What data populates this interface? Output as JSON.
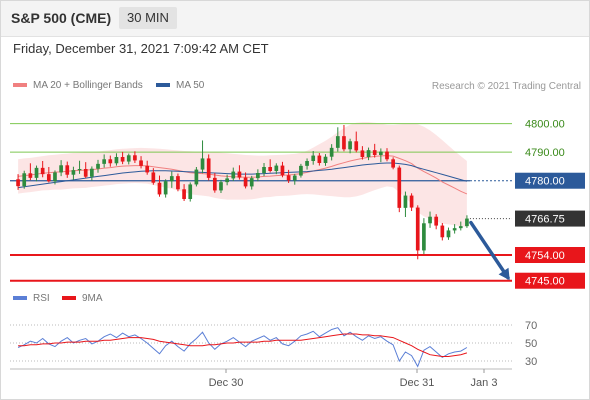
{
  "header": {
    "title": "S&P 500 (CME)",
    "timeframe": "30 MIN"
  },
  "datetime": "Friday, December 31, 2021 7:09:42 AM CET",
  "credit": "Research © 2021 Trading Central",
  "legend": {
    "main": [
      {
        "label": "MA 20 + Bollinger Bands",
        "color": "#f08080"
      },
      {
        "label": "MA 50",
        "color": "#2c5a9a"
      }
    ],
    "rsi": [
      {
        "label": "RSI",
        "color": "#5b7fd6"
      },
      {
        "label": "9MA",
        "color": "#e8161b"
      }
    ]
  },
  "colors": {
    "up": "#2e8b3e",
    "down": "#e8161b",
    "band": "#fbe0e0",
    "ma20": "#f08080",
    "ma50": "#2c5a9a",
    "arrow": "#2c5a9a"
  },
  "chart_data": {
    "type": "candlestick",
    "ylim": [
      4740,
      4810
    ],
    "x_ticks": [
      "Dec 30",
      "Dec 31",
      "Jan 3"
    ],
    "current_price": {
      "value": 4766.75,
      "label": "4766.75"
    },
    "levels": [
      {
        "value": 4800.0,
        "label": "4800.00",
        "kind": "resistance",
        "color": "#7ec850",
        "text_color": "#3a8a1a"
      },
      {
        "value": 4790.0,
        "label": "4790.00",
        "kind": "resistance",
        "color": "#7ec850",
        "text_color": "#3a8a1a"
      },
      {
        "value": 4780.0,
        "label": "4780.00",
        "kind": "pivot",
        "color": "#2c5a9a",
        "text_color": "#ffffff",
        "fill": "#2c5a9a"
      },
      {
        "value": 4754.0,
        "label": "4754.00",
        "kind": "support",
        "color": "#e8161b",
        "text_color": "#ffffff",
        "fill": "#e8161b"
      },
      {
        "value": 4745.0,
        "label": "4745.00",
        "kind": "support",
        "color": "#e8161b",
        "text_color": "#ffffff",
        "fill": "#e8161b"
      }
    ],
    "candles": [
      [
        4780.5,
        4782.3,
        4776.8,
        4778.1
      ],
      [
        4778.1,
        4783.5,
        4777.2,
        4782.6
      ],
      [
        4782.6,
        4786.1,
        4780.2,
        4781.0
      ],
      [
        4781.0,
        4785.3,
        4779.8,
        4784.5
      ],
      [
        4784.5,
        4786.9,
        4781.2,
        4782.3
      ],
      [
        4782.3,
        4784.8,
        4779.4,
        4779.8
      ],
      [
        4779.8,
        4783.6,
        4778.7,
        4782.9
      ],
      [
        4782.9,
        4787.2,
        4781.6,
        4785.4
      ],
      [
        4785.4,
        4786.7,
        4781.0,
        4782.1
      ],
      [
        4782.1,
        4784.9,
        4780.3,
        4783.7
      ],
      [
        4783.7,
        4787.0,
        4782.4,
        4784.1
      ],
      [
        4784.1,
        4786.5,
        4780.9,
        4781.4
      ],
      [
        4781.4,
        4785.0,
        4780.1,
        4784.2
      ],
      [
        4784.2,
        4787.3,
        4782.8,
        4785.9
      ],
      [
        4785.9,
        4789.2,
        4784.6,
        4787.5
      ],
      [
        4787.5,
        4788.8,
        4784.9,
        4786.1
      ],
      [
        4786.1,
        4789.6,
        4785.3,
        4788.3
      ],
      [
        4788.3,
        4790.1,
        4785.8,
        4786.7
      ],
      [
        4786.7,
        4789.5,
        4785.7,
        4788.9
      ],
      [
        4788.9,
        4790.3,
        4786.2,
        4787.1
      ],
      [
        4787.1,
        4788.6,
        4784.3,
        4785.2
      ],
      [
        4785.2,
        4787.0,
        4782.1,
        4782.9
      ],
      [
        4782.9,
        4784.4,
        4778.6,
        4779.3
      ],
      [
        4779.3,
        4781.8,
        4774.4,
        4775.2
      ],
      [
        4775.2,
        4780.5,
        4774.1,
        4779.8
      ],
      [
        4779.8,
        4783.2,
        4777.5,
        4781.6
      ],
      [
        4781.6,
        4782.5,
        4776.3,
        4777.0
      ],
      [
        4777.0,
        4778.8,
        4772.9,
        4773.6
      ],
      [
        4773.6,
        4779.4,
        4772.7,
        4778.7
      ],
      [
        4778.7,
        4784.8,
        4778.0,
        4783.9
      ],
      [
        4783.9,
        4794.1,
        4782.6,
        4787.8
      ],
      [
        4787.8,
        4789.2,
        4780.1,
        4781.0
      ],
      [
        4781.0,
        4782.7,
        4775.8,
        4776.6
      ],
      [
        4776.6,
        4780.3,
        4775.7,
        4779.5
      ],
      [
        4779.5,
        4782.1,
        4778.4,
        4780.8
      ],
      [
        4780.8,
        4784.6,
        4779.9,
        4783.2
      ],
      [
        4783.2,
        4785.4,
        4780.4,
        4781.1
      ],
      [
        4781.1,
        4782.9,
        4777.3,
        4778.0
      ],
      [
        4778.0,
        4781.7,
        4776.9,
        4780.9
      ],
      [
        4780.9,
        4784.0,
        4779.8,
        4782.7
      ],
      [
        4782.7,
        4786.2,
        4781.6,
        4784.8
      ],
      [
        4784.8,
        4787.5,
        4782.9,
        4783.4
      ],
      [
        4783.4,
        4786.1,
        4782.3,
        4785.3
      ],
      [
        4785.3,
        4786.6,
        4781.2,
        4781.9
      ],
      [
        4781.9,
        4783.8,
        4779.2,
        4780.1
      ],
      [
        4780.1,
        4782.4,
        4778.6,
        4781.8
      ],
      [
        4781.8,
        4785.9,
        4781.1,
        4785.2
      ],
      [
        4785.2,
        4787.8,
        4783.9,
        4786.9
      ],
      [
        4786.9,
        4790.4,
        4785.6,
        4788.8
      ],
      [
        4788.8,
        4789.7,
        4785.3,
        4786.2
      ],
      [
        4786.2,
        4789.3,
        4785.2,
        4788.4
      ],
      [
        4788.4,
        4792.8,
        4787.1,
        4791.5
      ],
      [
        4791.5,
        4798.7,
        4790.2,
        4795.6
      ],
      [
        4795.6,
        4799.5,
        4790.3,
        4791.0
      ],
      [
        4791.0,
        4794.7,
        4789.6,
        4793.8
      ],
      [
        4793.8,
        4797.2,
        4789.9,
        4790.6
      ],
      [
        4790.6,
        4792.1,
        4787.4,
        4788.3
      ],
      [
        4788.3,
        4791.6,
        4787.2,
        4790.7
      ],
      [
        4790.7,
        4792.9,
        4788.1,
        4789.0
      ],
      [
        4789.0,
        4791.3,
        4786.5,
        4790.2
      ],
      [
        4790.2,
        4791.4,
        4786.8,
        4787.5
      ],
      [
        4787.5,
        4788.2,
        4784.0,
        4784.6
      ],
      [
        4784.6,
        4785.3,
        4769.0,
        4770.5
      ],
      [
        4770.5,
        4776.2,
        4767.3,
        4774.8
      ],
      [
        4774.8,
        4775.6,
        4769.4,
        4770.6
      ],
      [
        4770.6,
        4771.4,
        4752.5,
        4755.6
      ],
      [
        4755.6,
        4766.9,
        4754.3,
        4765.1
      ],
      [
        4765.1,
        4769.2,
        4763.5,
        4767.4
      ],
      [
        4767.4,
        4768.3,
        4763.0,
        4764.3
      ],
      [
        4764.3,
        4765.2,
        4759.1,
        4760.2
      ],
      [
        4760.2,
        4763.6,
        4759.3,
        4762.6
      ],
      [
        4762.6,
        4764.8,
        4761.5,
        4763.4
      ],
      [
        4763.4,
        4765.7,
        4762.6,
        4764.1
      ],
      [
        4764.1,
        4767.9,
        4763.5,
        4766.75
      ]
    ],
    "ma20": [
      4781.5,
      4781.8,
      4782.0,
      4782.3,
      4782.6,
      4782.8,
      4783.0,
      4783.1,
      4783.3,
      4783.5,
      4783.6,
      4783.7,
      4783.9,
      4784.1,
      4784.4,
      4784.6,
      4784.9,
      4785.1,
      4785.2,
      4785.3,
      4785.3,
      4785.2,
      4784.9,
      4784.6,
      4784.3,
      4784.0,
      4783.6,
      4783.2,
      4782.8,
      4782.6,
      4782.5,
      4782.3,
      4782.0,
      4781.7,
      4781.5,
      4781.4,
      4781.3,
      4781.2,
      4781.2,
      4781.3,
      4781.5,
      4781.6,
      4781.8,
      4781.9,
      4782.0,
      4782.2,
      4782.5,
      4782.9,
      4783.4,
      4783.9,
      4784.4,
      4785.0,
      4785.7,
      4786.3,
      4786.9,
      4787.4,
      4787.8,
      4788.2,
      4788.5,
      4788.7,
      4788.8,
      4788.6,
      4787.8,
      4787.0,
      4786.0,
      4784.4,
      4783.2,
      4782.1,
      4780.9,
      4779.6,
      4778.5,
      4777.4,
      4776.3,
      4775.4
    ],
    "ma50": [
      4777.6,
      4777.9,
      4778.2,
      4778.5,
      4778.8,
      4779.1,
      4779.4,
      4779.7,
      4780.0,
      4780.3,
      4780.6,
      4780.9,
      4781.2,
      4781.5,
      4781.8,
      4782.1,
      4782.4,
      4782.7,
      4782.9,
      4783.1,
      4783.3,
      4783.4,
      4783.5,
      4783.5,
      4783.5,
      4783.4,
      4783.3,
      4783.2,
      4783.1,
      4783.0,
      4782.9,
      4782.8,
      4782.7,
      4782.6,
      4782.5,
      4782.4,
      4782.3,
      4782.3,
      4782.3,
      4782.4,
      4782.5,
      4782.6,
      4782.7,
      4782.8,
      4782.9,
      4783.0,
      4783.1,
      4783.2,
      4783.4,
      4783.6,
      4783.8,
      4784.0,
      4784.3,
      4784.6,
      4784.9,
      4785.2,
      4785.5,
      4785.7,
      4785.9,
      4786.1,
      4786.2,
      4786.2,
      4786.0,
      4785.7,
      4785.3,
      4784.6,
      4784.0,
      4783.4,
      4782.8,
      4782.2,
      4781.6,
      4781.0,
      4780.4,
      4779.8
    ],
    "bb_upper": [
      4787.5,
      4787.8,
      4788.0,
      4788.3,
      4788.6,
      4788.9,
      4789.1,
      4789.3,
      4789.5,
      4789.7,
      4789.8,
      4789.9,
      4790.0,
      4790.2,
      4790.5,
      4790.7,
      4791.0,
      4791.2,
      4791.3,
      4791.4,
      4791.5,
      4791.4,
      4791.3,
      4791.2,
      4791.0,
      4790.8,
      4790.6,
      4790.4,
      4790.3,
      4790.2,
      4790.2,
      4790.1,
      4790.0,
      4789.8,
      4789.6,
      4789.4,
      4789.2,
      4789.0,
      4788.9,
      4788.8,
      4788.8,
      4788.9,
      4789.0,
      4789.1,
      4789.2,
      4789.4,
      4789.8,
      4790.5,
      4791.6,
      4792.8,
      4794.0,
      4795.4,
      4797.0,
      4798.4,
      4799.6,
      4800.3,
      4800.5,
      4800.5,
      4800.3,
      4800.0,
      4799.6,
      4799.5,
      4799.7,
      4799.9,
      4800.0,
      4799.8,
      4798.9,
      4797.6,
      4796.0,
      4794.2,
      4792.3,
      4790.4,
      4788.6,
      4786.9
    ],
    "bb_lower": [
      4775.5,
      4775.8,
      4776.0,
      4776.3,
      4776.6,
      4776.7,
      4776.9,
      4776.9,
      4777.1,
      4777.3,
      4777.4,
      4777.5,
      4777.8,
      4778.0,
      4778.3,
      4778.5,
      4778.8,
      4779.0,
      4779.1,
      4779.2,
      4779.1,
      4779.0,
      4778.5,
      4778.0,
      4777.6,
      4777.2,
      4776.6,
      4776.0,
      4775.3,
      4775.0,
      4774.8,
      4774.5,
      4774.0,
      4773.6,
      4773.4,
      4773.4,
      4773.4,
      4773.4,
      4773.5,
      4773.8,
      4774.2,
      4774.3,
      4774.6,
      4774.7,
      4774.8,
      4775.0,
      4775.2,
      4775.3,
      4775.2,
      4775.0,
      4774.8,
      4774.6,
      4774.4,
      4774.2,
      4774.2,
      4774.5,
      4775.1,
      4775.9,
      4776.7,
      4777.4,
      4778.0,
      4777.7,
      4775.9,
      4774.1,
      4772.0,
      4769.0,
      4767.5,
      4766.6,
      4765.8,
      4765.0,
      4764.7,
      4764.4,
      4764.0,
      4763.9
    ],
    "forecast_arrow": {
      "from": 4766.75,
      "to": 4745.0
    },
    "rsi": {
      "ylim": [
        20,
        80
      ],
      "ticks": [
        70,
        50,
        30
      ],
      "rsi": [
        45,
        48,
        52,
        50,
        55,
        49,
        46,
        52,
        56,
        50,
        53,
        55,
        49,
        52,
        57,
        60,
        56,
        61,
        57,
        59,
        55,
        50,
        44,
        38,
        47,
        52,
        46,
        41,
        49,
        55,
        62,
        50,
        43,
        49,
        52,
        56,
        51,
        46,
        52,
        55,
        58,
        53,
        56,
        49,
        47,
        52,
        58,
        60,
        63,
        57,
        61,
        65,
        67,
        58,
        62,
        57,
        53,
        58,
        55,
        57,
        52,
        48,
        30,
        40,
        36,
        24,
        42,
        46,
        40,
        34,
        38,
        40,
        41,
        45
      ],
      "ma9": [
        47,
        47,
        48,
        48,
        49,
        49,
        50,
        50,
        51,
        51,
        51,
        52,
        52,
        52,
        53,
        53,
        54,
        55,
        56,
        56,
        56,
        55,
        54,
        52,
        51,
        50,
        49,
        48,
        47,
        47,
        47,
        48,
        48,
        49,
        50,
        50,
        51,
        51,
        51,
        51,
        52,
        52,
        53,
        53,
        53,
        53,
        53,
        54,
        55,
        56,
        57,
        58,
        59,
        60,
        60,
        60,
        59,
        59,
        58,
        58,
        57,
        56,
        53,
        50,
        47,
        43,
        40,
        37,
        36,
        35,
        35,
        36,
        37,
        39
      ]
    }
  }
}
